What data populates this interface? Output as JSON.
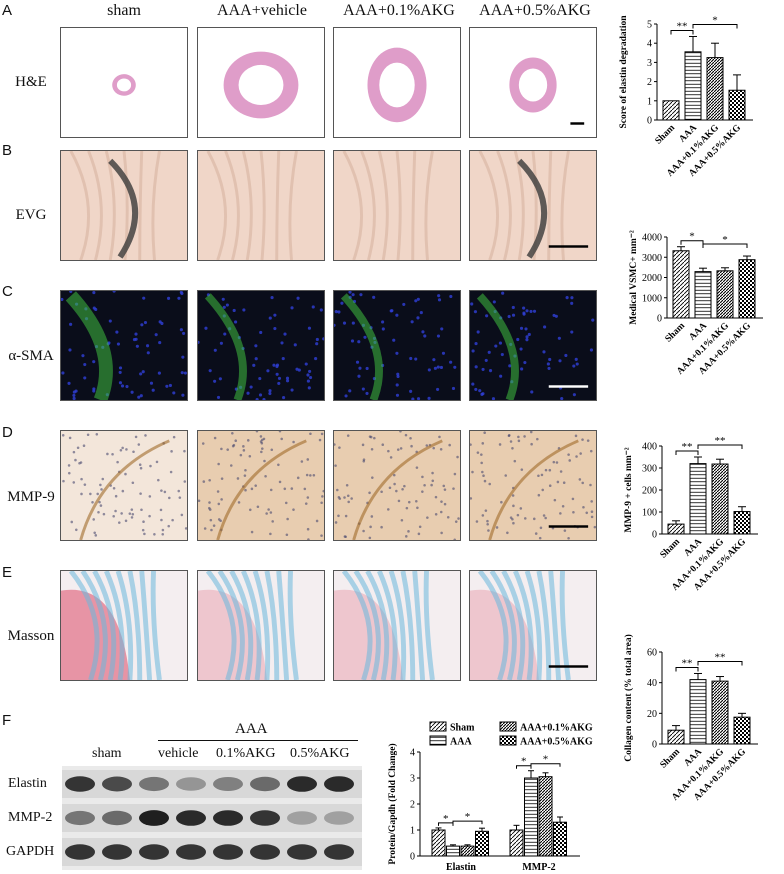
{
  "panel_labels": {
    "A": "A",
    "B": "B",
    "C": "C",
    "D": "D",
    "E": "E",
    "F": "F"
  },
  "columns": [
    "sham",
    "AAA+vehicle",
    "AAA+0.1%AKG",
    "AAA+0.5%AKG"
  ],
  "rows": [
    {
      "label": "H&E",
      "stain": "he"
    },
    {
      "label": "EVG",
      "stain": "evg"
    },
    {
      "label": "α-SMA",
      "stain": "sma"
    },
    {
      "label": "MMP-9",
      "stain": "mmp"
    },
    {
      "label": "Masson",
      "stain": "masson"
    }
  ],
  "colors": {
    "he_pink": "#d98cc0",
    "evg_bg": "#f0d6c8",
    "sma_bg": "#0a0d1a",
    "sma_green": "#3fbf3f",
    "sma_blue": "#3040d8",
    "mmp_bg": "#e8cdb0",
    "masson_red": "#e58a9c",
    "masson_blue": "#6ab8dc"
  },
  "chart_data": [
    {
      "type": "bar",
      "id": "elastin_score",
      "categories": [
        "Sham",
        "AAA",
        "AAA+0.1%AKG",
        "AAA+0.5%AKG"
      ],
      "values": [
        1.0,
        3.55,
        3.25,
        1.55
      ],
      "errors": [
        0,
        0.8,
        0.75,
        0.8
      ],
      "ylabel": "Score of elastin degradation",
      "ylim": [
        0,
        5
      ],
      "yticks": [
        0,
        1,
        2,
        3,
        4,
        5
      ],
      "sig": [
        {
          "from": 0,
          "to": 1,
          "label": "**"
        },
        {
          "from": 1,
          "to": 3,
          "label": "*"
        }
      ]
    },
    {
      "type": "bar",
      "id": "vsmc",
      "categories": [
        "Sham",
        "AAA",
        "AAA+0.1%AKG",
        "AAA+0.5%AKG"
      ],
      "values": [
        3320,
        2290,
        2330,
        2880
      ],
      "errors": [
        200,
        170,
        150,
        180
      ],
      "ylabel": "Medical VSMC+ mm⁻²",
      "ylim": [
        0,
        4000
      ],
      "yticks": [
        0,
        1000,
        2000,
        3000,
        4000
      ],
      "sig": [
        {
          "from": 0,
          "to": 1,
          "label": "*"
        },
        {
          "from": 1,
          "to": 3,
          "label": "*"
        }
      ]
    },
    {
      "type": "bar",
      "id": "mmp9",
      "categories": [
        "Sham",
        "AAA",
        "AAA+0.1%AKG",
        "AAA+0.5%AKG"
      ],
      "values": [
        45,
        320,
        318,
        102
      ],
      "errors": [
        15,
        30,
        22,
        22
      ],
      "ylabel": "MMP-9 + cells mm⁻²",
      "ylim": [
        0,
        400
      ],
      "yticks": [
        0,
        100,
        200,
        300,
        400
      ],
      "sig": [
        {
          "from": 0,
          "to": 1,
          "label": "**"
        },
        {
          "from": 1,
          "to": 3,
          "label": "**"
        }
      ]
    },
    {
      "type": "bar",
      "id": "collagen",
      "categories": [
        "Sham",
        "AAA",
        "AAA+0.1%AKG",
        "AAA+0.5%AKG"
      ],
      "values": [
        9,
        42,
        41,
        17.5
      ],
      "errors": [
        3,
        4,
        3,
        2.5
      ],
      "ylabel": "Collagen content (% total area)",
      "ylim": [
        0,
        60
      ],
      "yticks": [
        0,
        20,
        40,
        60
      ],
      "sig": [
        {
          "from": 0,
          "to": 1,
          "label": "**"
        },
        {
          "from": 1,
          "to": 3,
          "label": "**"
        }
      ]
    },
    {
      "type": "bar",
      "id": "western",
      "categories": [
        "Elastin",
        "MMP-2"
      ],
      "series": [
        {
          "name": "Sham",
          "values": [
            1.0,
            1.0
          ],
          "errors": [
            0.08,
            0.18
          ]
        },
        {
          "name": "AAA",
          "values": [
            0.38,
            3.0
          ],
          "errors": [
            0.05,
            0.28
          ]
        },
        {
          "name": "AAA+0.1%AKG",
          "values": [
            0.38,
            3.05
          ],
          "errors": [
            0.05,
            0.15
          ]
        },
        {
          "name": "AAA+0.5%AKG",
          "values": [
            0.95,
            1.3
          ],
          "errors": [
            0.12,
            0.2
          ]
        }
      ],
      "ylabel": "Protein/Gapdh (Fold Change)",
      "ylim": [
        0,
        4
      ],
      "yticks": [
        0,
        1,
        2,
        3,
        4
      ],
      "sig": [
        {
          "cat": 0,
          "from": 0,
          "to": 1,
          "label": "*"
        },
        {
          "cat": 0,
          "from": 1,
          "to": 3,
          "label": "*"
        },
        {
          "cat": 1,
          "from": 0,
          "to": 1,
          "label": "*"
        },
        {
          "cat": 1,
          "from": 1,
          "to": 3,
          "label": "*"
        }
      ]
    }
  ],
  "western": {
    "group_label": "AAA",
    "lane_labels": [
      "sham",
      "vehicle",
      "0.1%AKG",
      "0.5%AKG"
    ],
    "proteins": [
      "Elastin",
      "MMP-2",
      "GAPDH"
    ],
    "intensities": [
      [
        0.85,
        0.75,
        0.55,
        0.4,
        0.5,
        0.6,
        0.9,
        0.9
      ],
      [
        0.55,
        0.6,
        0.95,
        0.9,
        0.9,
        0.85,
        0.35,
        0.35
      ],
      [
        0.85,
        0.85,
        0.85,
        0.85,
        0.85,
        0.85,
        0.85,
        0.85
      ]
    ]
  }
}
